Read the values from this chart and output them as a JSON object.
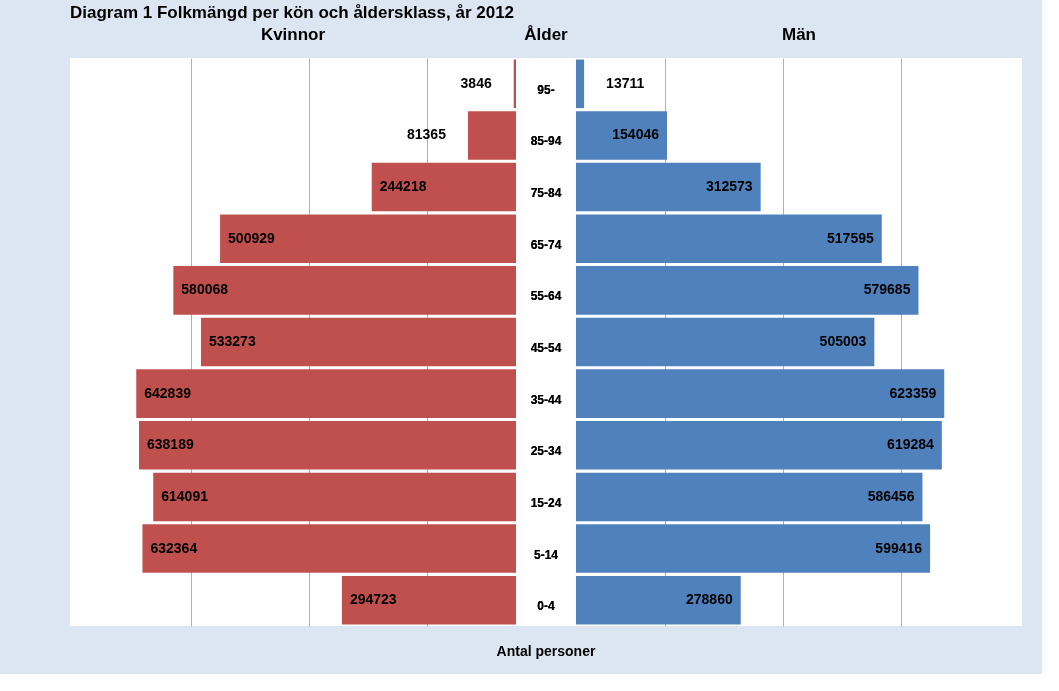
{
  "chart_data": [
    {
      "type": "bar",
      "orientation": "horizontal",
      "title": "Diagram 1 Folkmängd per kön och åldersklass, år 2012",
      "xlabel": "Antal personer",
      "categories": [
        "95-",
        "85-94",
        "75-84",
        "65-74",
        "55-64",
        "45-54",
        "35-44",
        "25-34",
        "15-24",
        "5-14",
        "0-4"
      ],
      "series": [
        {
          "name": "Kvinnor",
          "color": "#c0504d",
          "values": [
            3846,
            81365,
            244218,
            500929,
            580068,
            533273,
            642839,
            638189,
            614091,
            632364,
            294723
          ]
        }
      ],
      "xlim": [
        755000,
        0
      ],
      "xticks": [
        {
          "value": 550000,
          "label": null
        },
        {
          "value": 350000,
          "label": null
        },
        {
          "value": 150000,
          "label": null
        }
      ],
      "grid": "x",
      "data_labels": true,
      "tick_labels": "y"
    },
    {
      "type": "bar",
      "orientation": "horizontal",
      "ylabel": "Ålder",
      "categories": [
        "95-",
        "85-94",
        "75-84",
        "65-74",
        "55-64",
        "45-54",
        "35-44",
        "25-34",
        "15-24",
        "5-14",
        "0-4"
      ],
      "series": [
        {
          "name": "Män",
          "color": "#4f81bd",
          "values": [
            13711,
            154046,
            312573,
            517595,
            579685,
            505003,
            623359,
            619284,
            586456,
            599416,
            278860
          ]
        }
      ],
      "xlim": [
        0,
        755000
      ],
      "xticks": [
        {
          "value": 150000,
          "label": null
        },
        {
          "value": 350000,
          "label": null
        },
        {
          "value": 550000,
          "label": null
        }
      ],
      "grid": "x",
      "data_labels": true,
      "tick_labels": "y"
    }
  ]
}
